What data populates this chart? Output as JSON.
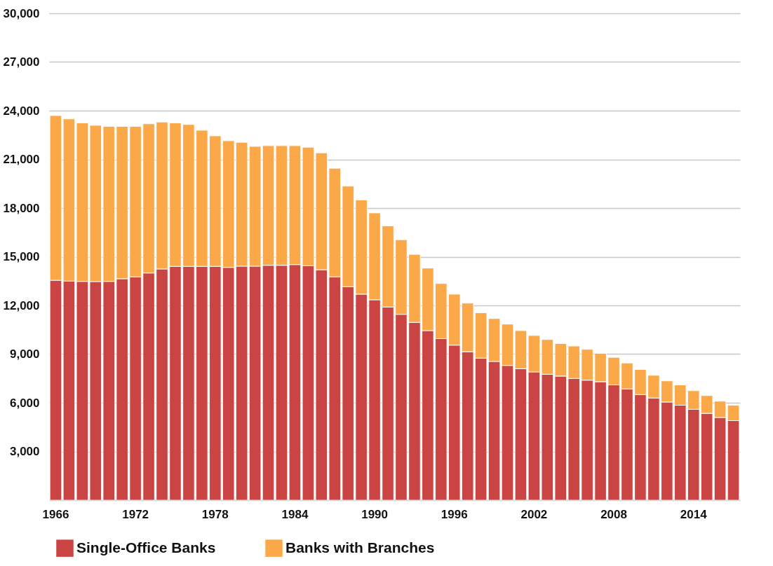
{
  "chart_data": {
    "type": "bar",
    "stacked": true,
    "categories": [
      "1966",
      null,
      null,
      null,
      null,
      null,
      "1972",
      null,
      null,
      null,
      null,
      null,
      "1978",
      null,
      null,
      null,
      null,
      null,
      "1984",
      null,
      null,
      null,
      null,
      null,
      "1990",
      null,
      null,
      null,
      null,
      null,
      "1996",
      null,
      null,
      null,
      null,
      null,
      "2002",
      null,
      null,
      null,
      null,
      null,
      "2008",
      null,
      null,
      null,
      null,
      null,
      "2014",
      null,
      null,
      null
    ],
    "series": [
      {
        "name": "Single-Office Banks",
        "color": "#c94442",
        "values": [
          13550,
          13500,
          13480,
          13470,
          13480,
          13650,
          13750,
          14000,
          14250,
          14400,
          14400,
          14400,
          14400,
          14350,
          14420,
          14420,
          14480,
          14480,
          14520,
          14450,
          14200,
          13750,
          13150,
          12700,
          12350,
          11900,
          11450,
          10950,
          10450,
          9950,
          9550,
          9150,
          8750,
          8550,
          8300,
          8100,
          7900,
          7750,
          7650,
          7500,
          7400,
          7300,
          7100,
          6850,
          6500,
          6300,
          6050,
          5850,
          5600,
          5350,
          5100,
          4900
        ]
      },
      {
        "name": "Banks with Branches",
        "color": "#fba848",
        "values": [
          10150,
          10000,
          9770,
          9630,
          9550,
          9380,
          9280,
          9200,
          9050,
          8850,
          8750,
          8400,
          8050,
          7800,
          7630,
          7380,
          7370,
          7370,
          7330,
          7300,
          7200,
          6700,
          6200,
          5800,
          5350,
          5000,
          4600,
          4200,
          3850,
          3400,
          3150,
          3000,
          2800,
          2650,
          2550,
          2350,
          2250,
          2150,
          2000,
          2000,
          1900,
          1750,
          1700,
          1600,
          1550,
          1400,
          1300,
          1250,
          1150,
          1100,
          1000,
          950
        ]
      }
    ],
    "ylim": [
      0,
      30000
    ],
    "yticks": [
      {
        "value": 0,
        "label": null
      },
      {
        "value": 3000,
        "label": "3,000"
      },
      {
        "value": 6000,
        "label": "6,000"
      },
      {
        "value": 9000,
        "label": "9,000"
      },
      {
        "value": 12000,
        "label": "12,000"
      },
      {
        "value": 15000,
        "label": "15,000"
      },
      {
        "value": 18000,
        "label": "18,000"
      },
      {
        "value": 21000,
        "label": "21,000"
      },
      {
        "value": 24000,
        "label": "24,000"
      },
      {
        "value": 27000,
        "label": "27,000"
      },
      {
        "value": 30000,
        "label": "30,000"
      }
    ],
    "grid": "y",
    "legend": "bottom"
  }
}
